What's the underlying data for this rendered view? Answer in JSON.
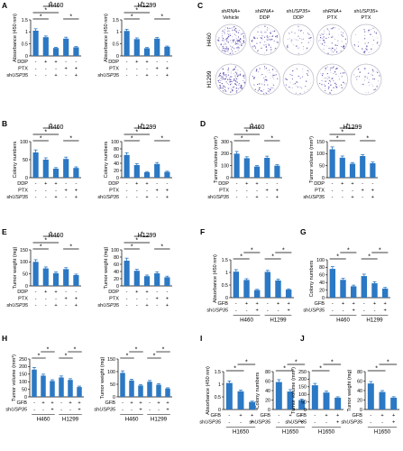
{
  "panels": [
    {
      "letter": "A",
      "charts": [
        {
          "title": "H460",
          "ylabel": "Absorbance (450 nm)",
          "ylim": [
            0,
            1.5
          ],
          "yticks": [
            0,
            0.5,
            1,
            1.5
          ],
          "values": [
            1.05,
            0.78,
            0.33,
            0.72,
            0.36
          ],
          "errors": [
            0.08,
            0.05,
            0.03,
            0.06,
            0.03
          ],
          "bars": [
            [
              0,
              1
            ],
            [
              0,
              2
            ],
            [
              1,
              2
            ],
            [
              3,
              4
            ]
          ],
          "condition": "ABC"
        },
        {
          "title": "H1299",
          "ylabel": "Absorbance (450 nm)",
          "ylim": [
            0,
            1.5
          ],
          "yticks": [
            0,
            0.5,
            1,
            1.5
          ],
          "values": [
            1.04,
            0.7,
            0.32,
            0.72,
            0.38
          ],
          "errors": [
            0.07,
            0.05,
            0.03,
            0.05,
            0.03
          ],
          "bars": [
            [
              0,
              1
            ],
            [
              0,
              2
            ],
            [
              1,
              2
            ],
            [
              3,
              4
            ]
          ],
          "condition": "ABC"
        }
      ]
    },
    {
      "letter": "B",
      "charts": [
        {
          "title": "H460",
          "ylabel": "Colony numbers",
          "ylim": [
            0,
            100
          ],
          "yticks": [
            0,
            50,
            100
          ],
          "values": [
            70,
            50,
            25,
            52,
            27
          ],
          "errors": [
            7,
            5,
            3,
            5,
            3
          ],
          "bars": [
            [
              0,
              1
            ],
            [
              0,
              2
            ],
            [
              1,
              2
            ],
            [
              3,
              4
            ]
          ],
          "condition": "ABC"
        },
        {
          "title": "H1299",
          "ylabel": "Colony numbers",
          "ylim": [
            0,
            100
          ],
          "yticks": [
            0,
            20,
            40,
            60,
            80,
            100
          ],
          "values": [
            63,
            35,
            15,
            38,
            16
          ],
          "errors": [
            6,
            4,
            2,
            4,
            2
          ],
          "bars": [
            [
              0,
              1
            ],
            [
              0,
              2
            ],
            [
              1,
              2
            ],
            [
              3,
              4
            ]
          ],
          "condition": "ABC"
        }
      ]
    },
    {
      "letter": "D",
      "charts": [
        {
          "title": "H460",
          "ylabel": "Tumor volume (mm³)",
          "ylim": [
            0,
            300
          ],
          "yticks": [
            0,
            100,
            200,
            300
          ],
          "values": [
            200,
            162,
            93,
            165,
            100
          ],
          "errors": [
            18,
            12,
            8,
            14,
            8
          ],
          "bars": [
            [
              0,
              1
            ],
            [
              0,
              2
            ],
            [
              1,
              2
            ],
            [
              3,
              4
            ]
          ],
          "condition": "ABC"
        },
        {
          "title": "H1299",
          "ylabel": "Tumor volume (mm³)",
          "ylim": [
            0,
            150
          ],
          "yticks": [
            0,
            50,
            100,
            150
          ],
          "values": [
            118,
            83,
            58,
            90,
            60
          ],
          "errors": [
            10,
            7,
            5,
            6,
            5
          ],
          "bars": [
            [
              0,
              1
            ],
            [
              0,
              2
            ],
            [
              1,
              2
            ],
            [
              3,
              4
            ]
          ],
          "condition": "ABC"
        }
      ]
    },
    {
      "letter": "E",
      "charts": [
        {
          "title": "H460",
          "ylabel": "Tumor weight (mg)",
          "ylim": [
            0,
            150
          ],
          "yticks": [
            0,
            50,
            100,
            150
          ],
          "values": [
            100,
            73,
            53,
            70,
            45
          ],
          "errors": [
            9,
            6,
            5,
            6,
            4
          ],
          "bars": [
            [
              0,
              1
            ],
            [
              0,
              2
            ],
            [
              1,
              2
            ],
            [
              3,
              4
            ]
          ],
          "condition": "ABC"
        },
        {
          "title": "H1299",
          "ylabel": "Tumor weight (mg)",
          "ylim": [
            0,
            100
          ],
          "yticks": [
            0,
            20,
            40,
            60,
            80,
            100
          ],
          "values": [
            70,
            42,
            27,
            35,
            24
          ],
          "errors": [
            7,
            4,
            3,
            4,
            3
          ],
          "bars": [
            [
              0,
              1
            ],
            [
              0,
              2
            ],
            [
              1,
              2
            ],
            [
              3,
              4
            ]
          ],
          "condition": "ABC"
        }
      ]
    },
    {
      "letter": "F",
      "charts": [
        {
          "title": "",
          "ylabel": "Absorbance (450 nm)",
          "ylim": [
            0,
            1.5
          ],
          "yticks": [
            0,
            0.5,
            1,
            1.5
          ],
          "values": [
            1.03,
            0.7,
            0.3,
            1.02,
            0.68,
            0.32
          ],
          "errors": [
            0.08,
            0.05,
            0.03,
            0.06,
            0.05,
            0.03
          ],
          "bars": [
            [
              0,
              1
            ],
            [
              1,
              2
            ],
            [
              3,
              4
            ],
            [
              4,
              5
            ]
          ],
          "condition": "GS6",
          "groups": [
            "H460",
            "H1299"
          ]
        }
      ]
    },
    {
      "letter": "G",
      "charts": [
        {
          "title": "",
          "ylabel": "Colony numbers",
          "ylim": [
            0,
            100
          ],
          "yticks": [
            0,
            20,
            40,
            60,
            80,
            100
          ],
          "values": [
            76,
            47,
            30,
            57,
            38,
            24
          ],
          "errors": [
            6,
            4,
            3,
            5,
            4,
            3
          ],
          "bars": [
            [
              0,
              1
            ],
            [
              1,
              2
            ],
            [
              3,
              4
            ],
            [
              4,
              5
            ]
          ],
          "condition": "GS6",
          "groups": [
            "H460",
            "H1299"
          ]
        }
      ]
    },
    {
      "letter": "H",
      "charts": [
        {
          "title": "",
          "ylabel": "Tumor volume (mm³)",
          "ylim": [
            0,
            250
          ],
          "yticks": [
            0,
            50,
            100,
            150,
            200,
            250
          ],
          "values": [
            180,
            140,
            105,
            128,
            112,
            65
          ],
          "errors": [
            14,
            10,
            8,
            10,
            8,
            6
          ],
          "bars": [
            [
              0,
              1
            ],
            [
              1,
              2
            ],
            [
              3,
              4
            ],
            [
              4,
              5
            ]
          ],
          "condition": "GS6",
          "groups": [
            "H460",
            "H1299"
          ]
        },
        {
          "title": "",
          "ylabel": "Tumor weight (mg)",
          "ylim": [
            0,
            150
          ],
          "yticks": [
            0,
            50,
            100,
            150
          ],
          "values": [
            95,
            65,
            45,
            60,
            48,
            33
          ],
          "errors": [
            8,
            5,
            4,
            5,
            4,
            3
          ],
          "bars": [
            [
              0,
              1
            ],
            [
              1,
              2
            ],
            [
              3,
              4
            ],
            [
              4,
              5
            ]
          ],
          "condition": "GS6",
          "groups": [
            "H460",
            "H1299"
          ]
        }
      ]
    },
    {
      "letter": "I",
      "charts": [
        {
          "title": "",
          "ylabel": "Absorbance (450 nm)",
          "ylim": [
            0,
            1.5
          ],
          "yticks": [
            0,
            0.5,
            1,
            1.5
          ],
          "values": [
            1.05,
            0.72,
            0.3
          ],
          "errors": [
            0.08,
            0.05,
            0.03
          ],
          "bars": [
            [
              0,
              1
            ],
            [
              1,
              2
            ]
          ],
          "condition": "GS3",
          "groups": [
            "H1650"
          ]
        },
        {
          "title": "",
          "ylabel": "Colony numbers",
          "ylim": [
            0,
            80
          ],
          "yticks": [
            0,
            20,
            40,
            60,
            80
          ],
          "values": [
            58,
            38,
            20
          ],
          "errors": [
            5,
            4,
            2
          ],
          "bars": [
            [
              0,
              1
            ],
            [
              1,
              2
            ]
          ],
          "condition": "GS3",
          "groups": [
            "H1650"
          ]
        }
      ]
    },
    {
      "letter": "J",
      "charts": [
        {
          "title": "",
          "ylabel": "Tumor volume (mm³)",
          "ylim": [
            0,
            250
          ],
          "yticks": [
            0,
            50,
            100,
            150,
            200,
            250
          ],
          "values": [
            160,
            112,
            78
          ],
          "errors": [
            12,
            9,
            6
          ],
          "bars": [
            [
              0,
              1
            ],
            [
              1,
              2
            ]
          ],
          "condition": "GS3",
          "groups": [
            "H1650"
          ]
        },
        {
          "title": "",
          "ylabel": "Tumor weight (mg)",
          "ylim": [
            0,
            80
          ],
          "yticks": [
            0,
            20,
            40,
            60,
            80
          ],
          "values": [
            55,
            37,
            25
          ],
          "errors": [
            4,
            3,
            2
          ],
          "bars": [
            [
              0,
              1
            ],
            [
              1,
              2
            ]
          ],
          "condition": "GS3",
          "groups": [
            "H1650"
          ]
        }
      ]
    },
    {
      "letter": "C",
      "colonyPanel": true
    }
  ],
  "conditions": {
    "ABC": {
      "rows": [
        {
          "label": "DDP",
          "values": [
            "-",
            "+",
            "+",
            "-",
            "-"
          ]
        },
        {
          "label": "PTX",
          "values": [
            "-",
            "-",
            "-",
            "+",
            "+"
          ]
        },
        {
          "label": "shUSP35",
          "values": [
            "-",
            "-",
            "+",
            "-",
            "+"
          ]
        }
      ]
    },
    "GS6": {
      "rows": [
        {
          "label": "GFB",
          "values": [
            "-",
            "+",
            "+",
            "-",
            "+",
            "+"
          ]
        },
        {
          "label": "shUSP35",
          "values": [
            "-",
            "-",
            "+",
            "-",
            "-",
            "+"
          ]
        }
      ]
    },
    "GS3": {
      "rows": [
        {
          "label": "GFB",
          "values": [
            "-",
            "+",
            "+"
          ]
        },
        {
          "label": "shUSP35",
          "values": [
            "-",
            "-",
            "+"
          ]
        }
      ]
    }
  },
  "colony": {
    "columns": [
      "shRNA+\nVehicle",
      "shRNA+\nDDP",
      "shUSP35+\nDDP",
      "shRNA+\nPTX",
      "shUSP35+\nPTX"
    ],
    "rows": [
      "H460",
      "H1299"
    ],
    "density": [
      [
        1.0,
        0.6,
        0.3,
        0.55,
        0.3
      ],
      [
        1.0,
        0.5,
        0.25,
        0.5,
        0.25
      ]
    ]
  },
  "star": "*",
  "colors": {
    "bar": "#2b78c4",
    "dots": "#4a3ea6"
  }
}
